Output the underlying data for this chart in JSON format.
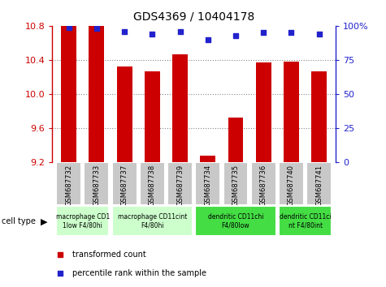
{
  "title": "GDS4369 / 10404178",
  "samples": [
    "GSM687732",
    "GSM687733",
    "GSM687737",
    "GSM687738",
    "GSM687739",
    "GSM687734",
    "GSM687735",
    "GSM687736",
    "GSM687740",
    "GSM687741"
  ],
  "bar_values": [
    10.8,
    10.795,
    10.32,
    10.27,
    10.47,
    9.28,
    9.72,
    10.37,
    10.38,
    10.27
  ],
  "percentile_values": [
    99,
    98,
    96,
    94,
    96,
    90,
    93,
    95,
    95,
    94
  ],
  "bar_color": "#cc0000",
  "percentile_color": "#2222cc",
  "ylim_left": [
    9.2,
    10.8
  ],
  "ylim_right": [
    0,
    100
  ],
  "yticks_left": [
    9.2,
    9.6,
    10.0,
    10.4,
    10.8
  ],
  "yticks_right": [
    0,
    25,
    50,
    75,
    100
  ],
  "ytick_labels_right": [
    "0",
    "25",
    "50",
    "75",
    "100%"
  ],
  "cell_type_groups": [
    {
      "label": "macrophage CD1\n1low F4/80hi",
      "start": 0,
      "end": 1,
      "color": "#ccffcc"
    },
    {
      "label": "macrophage CD11cint\nF4/80hi",
      "start": 2,
      "end": 4,
      "color": "#ccffcc"
    },
    {
      "label": "dendritic CD11chi\nF4/80low",
      "start": 5,
      "end": 7,
      "color": "#44dd44"
    },
    {
      "label": "dendritic CD11ci\nnt F4/80int",
      "start": 8,
      "end": 9,
      "color": "#44dd44"
    }
  ],
  "sample_box_color": "#c8c8c8",
  "sample_box_edge_color": "#ffffff",
  "legend_items": [
    {
      "label": "transformed count",
      "color": "#cc0000"
    },
    {
      "label": "percentile rank within the sample",
      "color": "#2222cc"
    }
  ]
}
